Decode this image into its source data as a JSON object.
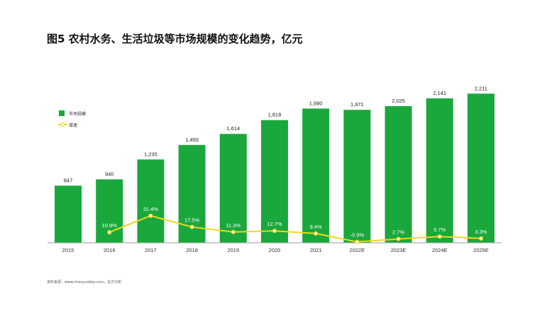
{
  "title": "图5 农村水务、生活垃圾等市场规模的变化趋势，亿元",
  "source": "资料来源：www.chenyudata.com，东方分析",
  "legend": {
    "bar_label": "市场规模",
    "line_label": "增速"
  },
  "colors": {
    "bar": "#1aa83c",
    "line": "#ecd81f",
    "text": "#333333",
    "axis": "#9a9a9a"
  },
  "chart_data": {
    "type": "bar",
    "categories": [
      "2015",
      "2016",
      "2017",
      "2018",
      "2019",
      "2020",
      "2021",
      "2022E",
      "2023E",
      "2024E",
      "2025E"
    ],
    "series": [
      {
        "name": "市场规模",
        "type": "bar",
        "values": [
          847,
          940,
          1235,
          1450,
          1614,
          1818,
          1990,
          1971,
          2025,
          2141,
          2211
        ],
        "labels": [
          "847",
          "940",
          "1,235",
          "1,450",
          "1,614",
          "1,818",
          "1,990",
          "1,971",
          "2,025",
          "2,141",
          "2,211"
        ]
      },
      {
        "name": "增速",
        "type": "line",
        "x": [
          "2016",
          "2017",
          "2018",
          "2019",
          "2020",
          "2021",
          "2022E",
          "2023E",
          "2024E",
          "2025E"
        ],
        "values": [
          10.9,
          31.4,
          17.5,
          11.3,
          12.7,
          9.4,
          -0.9,
          2.7,
          5.7,
          3.3
        ],
        "labels": [
          "10.9%",
          "31.4%",
          "17.5%",
          "11.3%",
          "12.7%",
          "9.4%",
          "-0.9%",
          "2.7%",
          "5.7%",
          "3.3%"
        ]
      }
    ],
    "legend_position": "top-left",
    "grid": false,
    "y_axis_shown": false
  }
}
